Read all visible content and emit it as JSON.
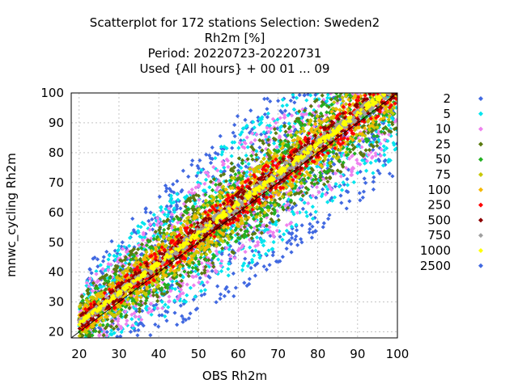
{
  "chart_data": {
    "type": "scatter",
    "title_lines": [
      "Scatterplot for  172 stations Selection: Sweden2",
      "Rh2m [%]",
      "Period: 20220723-20220731",
      "Used {All hours} + 00 01 ... 09"
    ],
    "xlabel": "OBS Rh2m",
    "ylabel": "mnwc_cycling Rh2m",
    "xlim": [
      18,
      100
    ],
    "ylim": [
      18,
      100
    ],
    "xticks": [
      20,
      30,
      40,
      50,
      60,
      70,
      80,
      90,
      100
    ],
    "yticks": [
      20,
      30,
      40,
      50,
      60,
      70,
      80,
      90,
      100
    ],
    "grid": true,
    "legend_position": "right",
    "reference_line": "y = x",
    "density_bands": [
      {
        "label": "2",
        "color": "#4169e1",
        "width": 30,
        "core_shift": 0
      },
      {
        "label": "5",
        "color": "#00e5ee",
        "width": 24,
        "core_shift": 0
      },
      {
        "label": "10",
        "color": "#ee82ee",
        "width": 20,
        "core_shift": 0
      },
      {
        "label": "25",
        "color": "#5a7a10",
        "width": 16,
        "core_shift": 0
      },
      {
        "label": "50",
        "color": "#22b022",
        "width": 13,
        "core_shift": 0
      },
      {
        "label": "75",
        "color": "#c8c800",
        "width": 10,
        "core_shift": 0
      },
      {
        "label": "100",
        "color": "#f5b800",
        "width": 8,
        "core_shift": 0
      },
      {
        "label": "250",
        "color": "#ff0000",
        "width": 6,
        "core_shift": 0
      },
      {
        "label": "500",
        "color": "#8b0000",
        "width": 4,
        "core_shift": 0
      },
      {
        "label": "750",
        "color": "#a0a0a0",
        "width": 2,
        "core_shift": 0
      },
      {
        "label": "1000",
        "color": "#ffff00",
        "width": 1,
        "core_shift": 0
      },
      {
        "label": "2500",
        "color": "#4169e1",
        "width": 0,
        "core_shift": 0
      }
    ]
  }
}
